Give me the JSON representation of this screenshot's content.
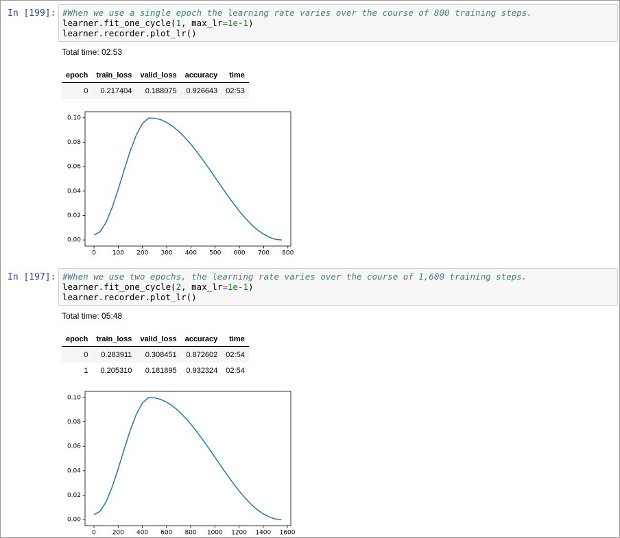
{
  "cells": [
    {
      "prompt": "In [199]:",
      "code": [
        [
          "#When we use a single epoch the learning rate varies over the course of 800 training steps."
        ],
        [
          "learner.fit_one_cycle(",
          "1",
          ", max_lr",
          "=",
          "1e-1",
          ")"
        ],
        [
          "learner.recorder.plot_lr()"
        ]
      ],
      "total_time": "Total time: 02:53",
      "table": {
        "header": [
          "epoch",
          "train_loss",
          "valid_loss",
          "accuracy",
          "time"
        ],
        "rows": [
          [
            "0",
            "0.217404",
            "0.188075",
            "0.926643",
            "02:53"
          ]
        ]
      }
    },
    {
      "prompt": "In [197]:",
      "code": [
        [
          "#When we use two epochs, the learning rate varies over the course of 1,600 training steps."
        ],
        [
          "learner.fit_one_cycle(",
          "2",
          ", max_lr",
          "=",
          "1e-1",
          ")"
        ],
        [
          "learner.recorder.plot_lr()"
        ]
      ],
      "total_time": "Total time: 05:48",
      "table": {
        "header": [
          "epoch",
          "train_loss",
          "valid_loss",
          "accuracy",
          "time"
        ],
        "rows": [
          [
            "0",
            "0.283911",
            "0.308451",
            "0.872602",
            "02:54"
          ],
          [
            "1",
            "0.205310",
            "0.181895",
            "0.932324",
            "02:54"
          ]
        ]
      }
    }
  ],
  "chart_data": [
    {
      "type": "line",
      "color": "#1f77b4",
      "x": [
        0,
        25,
        50,
        75,
        100,
        125,
        150,
        175,
        200,
        225,
        250,
        275,
        300,
        325,
        350,
        375,
        400,
        425,
        450,
        475,
        500,
        525,
        550,
        575,
        600,
        625,
        650,
        675,
        700,
        725,
        750,
        775
      ],
      "values": [
        0.004,
        0.0067,
        0.0145,
        0.0266,
        0.0415,
        0.0577,
        0.0731,
        0.0862,
        0.0954,
        0.0998,
        0.0997,
        0.0985,
        0.0962,
        0.093,
        0.0889,
        0.0839,
        0.0783,
        0.072,
        0.0653,
        0.0583,
        0.0511,
        0.0439,
        0.0368,
        0.03,
        0.0235,
        0.0177,
        0.0125,
        0.0081,
        0.0047,
        0.0021,
        0.0005,
        0
      ],
      "xlim": [
        -37,
        812
      ],
      "ylim": [
        -0.005,
        0.105
      ],
      "xticks": [
        0,
        100,
        200,
        300,
        400,
        500,
        600,
        700,
        800
      ],
      "yticks": [
        {
          "value": 0,
          "label": "0.00"
        },
        {
          "value": 0.02,
          "label": "0.02"
        },
        {
          "value": 0.04,
          "label": "0.04"
        },
        {
          "value": 0.06,
          "label": "0.06"
        },
        {
          "value": 0.08,
          "label": "0.08"
        },
        {
          "value": 0.1,
          "label": "0.10"
        }
      ]
    },
    {
      "type": "line",
      "color": "#1f77b4",
      "x": [
        0,
        50,
        100,
        150,
        200,
        250,
        300,
        350,
        400,
        450,
        500,
        550,
        600,
        650,
        700,
        750,
        800,
        850,
        900,
        950,
        1000,
        1050,
        1100,
        1150,
        1200,
        1250,
        1300,
        1350,
        1400,
        1450,
        1500,
        1550
      ],
      "values": [
        0.004,
        0.0067,
        0.0145,
        0.0266,
        0.0415,
        0.0577,
        0.0731,
        0.0862,
        0.0954,
        0.0998,
        0.0997,
        0.0985,
        0.0962,
        0.093,
        0.0889,
        0.0839,
        0.0783,
        0.072,
        0.0653,
        0.0583,
        0.0511,
        0.0439,
        0.0368,
        0.03,
        0.0235,
        0.0177,
        0.0125,
        0.0081,
        0.0047,
        0.0021,
        0.0005,
        0
      ],
      "xlim": [
        -74,
        1628
      ],
      "ylim": [
        -0.005,
        0.105
      ],
      "xticks": [
        0,
        200,
        400,
        600,
        800,
        1000,
        1200,
        1400,
        1600
      ],
      "yticks": [
        {
          "value": 0,
          "label": "0.00"
        },
        {
          "value": 0.02,
          "label": "0.02"
        },
        {
          "value": 0.04,
          "label": "0.04"
        },
        {
          "value": 0.06,
          "label": "0.06"
        },
        {
          "value": 0.08,
          "label": "0.08"
        },
        {
          "value": 0.1,
          "label": "0.10"
        }
      ]
    }
  ]
}
